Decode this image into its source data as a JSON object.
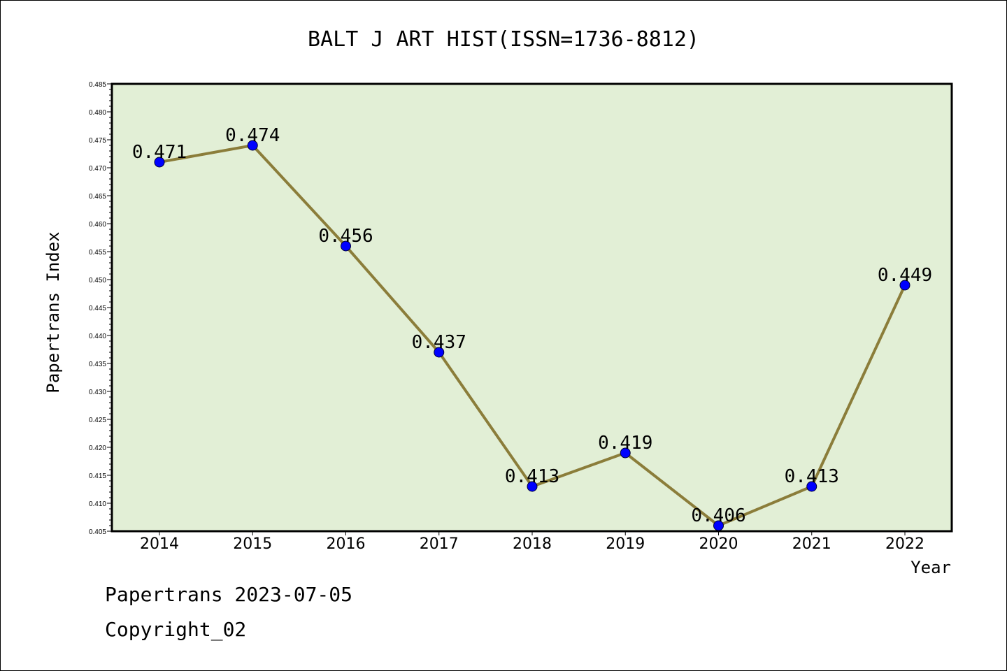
{
  "chart_data": {
    "type": "line",
    "title": "BALT J ART HIST(ISSN=1736-8812)",
    "xlabel": "Year",
    "ylabel": "Papertrans Index",
    "categories": [
      "2014",
      "2015",
      "2016",
      "2017",
      "2018",
      "2019",
      "2020",
      "2021",
      "2022"
    ],
    "values": [
      0.471,
      0.474,
      0.456,
      0.437,
      0.413,
      0.419,
      0.406,
      0.413,
      0.449
    ],
    "data_labels": [
      "0.471",
      "0.474",
      "0.456",
      "0.437",
      "0.413",
      "0.419",
      "0.406",
      "0.413",
      "0.449"
    ],
    "ylim": [
      0.405,
      0.485
    ],
    "yticks": [
      "0.405",
      "0.410",
      "0.415",
      "0.420",
      "0.425",
      "0.430",
      "0.435",
      "0.440",
      "0.445",
      "0.450",
      "0.455",
      "0.460",
      "0.465",
      "0.470",
      "0.475",
      "0.480",
      "0.485"
    ],
    "grid": false,
    "colors": {
      "plot_background": "#e2efd6",
      "line": "#8b7d3a",
      "marker": "#0000ff"
    }
  },
  "footer": {
    "line1": "Papertrans 2023-07-05",
    "line2": "Copyright_02"
  }
}
